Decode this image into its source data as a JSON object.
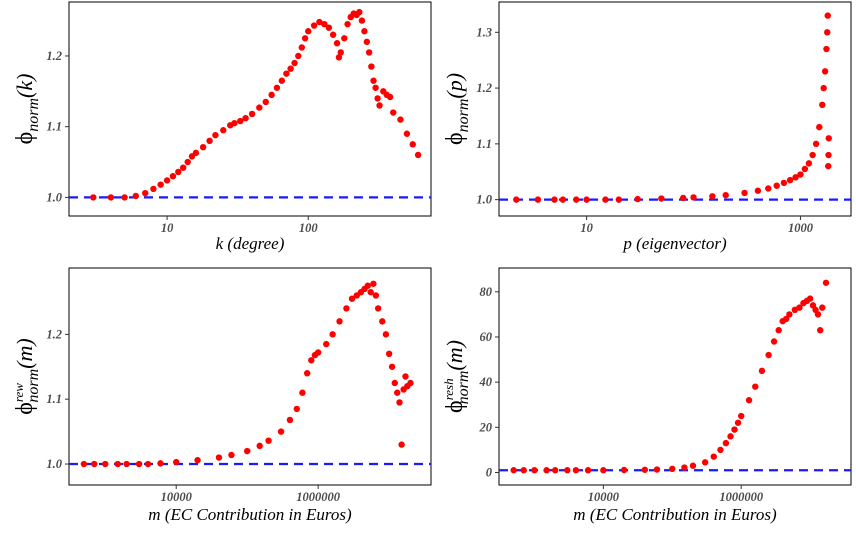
{
  "chart_data": [
    {
      "type": "scatter",
      "xlabel": "k (degree)",
      "ylabel": {
        "base": "ϕ",
        "sub": "norm",
        "sup": "",
        "arg": "(k)"
      },
      "xscale": "log10",
      "xlim": [
        2.3,
        650
      ],
      "ylim": [
        0.985,
        1.265
      ],
      "x_ticks": [
        {
          "value": 10,
          "label": "10"
        },
        {
          "value": 100,
          "label": "100"
        }
      ],
      "y_ticks": [
        {
          "value": 1.0,
          "label": "1.0"
        },
        {
          "value": 1.1,
          "label": "1.1"
        },
        {
          "value": 1.2,
          "label": "1.2"
        }
      ],
      "reference_line": 1.0,
      "points": [
        [
          3,
          1.0
        ],
        [
          4,
          1.0
        ],
        [
          5,
          1.0
        ],
        [
          6,
          1.002
        ],
        [
          7,
          1.006
        ],
        [
          8,
          1.012
        ],
        [
          9,
          1.018
        ],
        [
          10,
          1.024
        ],
        [
          11,
          1.03
        ],
        [
          12,
          1.036
        ],
        [
          13,
          1.042
        ],
        [
          14,
          1.05
        ],
        [
          15,
          1.058
        ],
        [
          16,
          1.063
        ],
        [
          18,
          1.071
        ],
        [
          20,
          1.08
        ],
        [
          22,
          1.088
        ],
        [
          25,
          1.095
        ],
        [
          28,
          1.102
        ],
        [
          30,
          1.105
        ],
        [
          33,
          1.108
        ],
        [
          36,
          1.112
        ],
        [
          40,
          1.118
        ],
        [
          45,
          1.127
        ],
        [
          50,
          1.135
        ],
        [
          55,
          1.145
        ],
        [
          60,
          1.155
        ],
        [
          65,
          1.165
        ],
        [
          70,
          1.175
        ],
        [
          75,
          1.182
        ],
        [
          80,
          1.19
        ],
        [
          85,
          1.2
        ],
        [
          90,
          1.212
        ],
        [
          95,
          1.225
        ],
        [
          100,
          1.235
        ],
        [
          110,
          1.243
        ],
        [
          120,
          1.248
        ],
        [
          130,
          1.245
        ],
        [
          140,
          1.24
        ],
        [
          150,
          1.23
        ],
        [
          160,
          1.218
        ],
        [
          165,
          1.198
        ],
        [
          170,
          1.205
        ],
        [
          180,
          1.225
        ],
        [
          190,
          1.245
        ],
        [
          200,
          1.255
        ],
        [
          210,
          1.26
        ],
        [
          220,
          1.258
        ],
        [
          230,
          1.262
        ],
        [
          240,
          1.25
        ],
        [
          250,
          1.235
        ],
        [
          260,
          1.22
        ],
        [
          270,
          1.205
        ],
        [
          280,
          1.185
        ],
        [
          290,
          1.165
        ],
        [
          300,
          1.155
        ],
        [
          310,
          1.14
        ],
        [
          320,
          1.13
        ],
        [
          340,
          1.15
        ],
        [
          360,
          1.145
        ],
        [
          380,
          1.142
        ],
        [
          400,
          1.12
        ],
        [
          450,
          1.11
        ],
        [
          500,
          1.09
        ],
        [
          550,
          1.075
        ],
        [
          600,
          1.06
        ]
      ]
    },
    {
      "type": "scatter",
      "xlabel": "p (eigenvector)",
      "ylabel": {
        "base": "ϕ",
        "sub": "norm",
        "sup": "",
        "arg": "(p)"
      },
      "xscale": "log10",
      "xlim": [
        1.8,
        2500
      ],
      "ylim": [
        0.985,
        1.34
      ],
      "x_ticks": [
        {
          "value": 10,
          "label": "10"
        },
        {
          "value": 1000,
          "label": "1000"
        }
      ],
      "y_ticks": [
        {
          "value": 1.0,
          "label": "1.0"
        },
        {
          "value": 1.1,
          "label": "1.1"
        },
        {
          "value": 1.2,
          "label": "1.2"
        },
        {
          "value": 1.3,
          "label": "1.3"
        }
      ],
      "reference_line": 1.0,
      "points": [
        [
          2.2,
          1.0
        ],
        [
          3.5,
          1.0
        ],
        [
          5,
          1.0
        ],
        [
          6,
          1.0
        ],
        [
          8,
          1.0
        ],
        [
          10,
          1.0
        ],
        [
          15,
          1.0
        ],
        [
          20,
          1.0
        ],
        [
          30,
          1.001
        ],
        [
          50,
          1.002
        ],
        [
          80,
          1.003
        ],
        [
          100,
          1.004
        ],
        [
          150,
          1.006
        ],
        [
          200,
          1.008
        ],
        [
          300,
          1.012
        ],
        [
          400,
          1.016
        ],
        [
          500,
          1.02
        ],
        [
          600,
          1.025
        ],
        [
          700,
          1.03
        ],
        [
          800,
          1.035
        ],
        [
          900,
          1.04
        ],
        [
          1000,
          1.045
        ],
        [
          1100,
          1.055
        ],
        [
          1200,
          1.065
        ],
        [
          1300,
          1.08
        ],
        [
          1400,
          1.1
        ],
        [
          1500,
          1.13
        ],
        [
          1600,
          1.17
        ],
        [
          1650,
          1.2
        ],
        [
          1700,
          1.23
        ],
        [
          1750,
          1.27
        ],
        [
          1780,
          1.3
        ],
        [
          1800,
          1.33
        ],
        [
          1820,
          1.06
        ],
        [
          1830,
          1.08
        ],
        [
          1840,
          1.11
        ]
      ]
    },
    {
      "type": "scatter",
      "xlabel": "m (EC Contribution in Euros)",
      "ylabel": {
        "base": "ϕ",
        "sub": "norm",
        "sup": "rew",
        "arg": "(m)"
      },
      "xscale": "log10",
      "xlim": [
        400,
        30000000.0
      ],
      "ylim": [
        0.98,
        1.29
      ],
      "x_ticks": [
        {
          "value": 10000,
          "label": "10000"
        },
        {
          "value": 1000000,
          "label": "1000000"
        }
      ],
      "y_ticks": [
        {
          "value": 1.0,
          "label": "1.0"
        },
        {
          "value": 1.1,
          "label": "1.1"
        },
        {
          "value": 1.2,
          "label": "1.2"
        }
      ],
      "reference_line": 1.0,
      "points": [
        [
          500,
          1.0
        ],
        [
          700,
          1.0
        ],
        [
          1000,
          1.0
        ],
        [
          1500,
          1.0
        ],
        [
          2000,
          1.0
        ],
        [
          3000,
          1.0
        ],
        [
          4000,
          1.0
        ],
        [
          6000,
          1.001
        ],
        [
          10000,
          1.003
        ],
        [
          20000,
          1.006
        ],
        [
          40000,
          1.01
        ],
        [
          60000,
          1.014
        ],
        [
          100000,
          1.02
        ],
        [
          150000,
          1.028
        ],
        [
          200000,
          1.036
        ],
        [
          300000,
          1.05
        ],
        [
          400000,
          1.068
        ],
        [
          500000,
          1.085
        ],
        [
          600000,
          1.11
        ],
        [
          700000,
          1.14
        ],
        [
          800000,
          1.16
        ],
        [
          900000,
          1.168
        ],
        [
          1000000,
          1.172
        ],
        [
          1300000,
          1.185
        ],
        [
          1600000,
          1.2
        ],
        [
          2000000,
          1.22
        ],
        [
          2500000,
          1.24
        ],
        [
          3000000,
          1.255
        ],
        [
          3500000,
          1.26
        ],
        [
          4000000,
          1.265
        ],
        [
          4500000,
          1.27
        ],
        [
          5000000,
          1.275
        ],
        [
          5500000,
          1.265
        ],
        [
          6000000,
          1.278
        ],
        [
          6500000,
          1.26
        ],
        [
          7000000,
          1.24
        ],
        [
          8000000,
          1.22
        ],
        [
          9000000,
          1.2
        ],
        [
          10000000,
          1.17
        ],
        [
          11000000,
          1.15
        ],
        [
          12000000,
          1.125
        ],
        [
          13000000,
          1.11
        ],
        [
          14000000,
          1.095
        ],
        [
          15000000,
          1.03
        ],
        [
          16000000,
          1.115
        ],
        [
          17000000,
          1.135
        ],
        [
          18000000,
          1.12
        ],
        [
          20000000,
          1.125
        ]
      ]
    },
    {
      "type": "scatter",
      "xlabel": "m (EC Contribution in Euros)",
      "ylabel": {
        "base": "ϕ",
        "sub": "norm",
        "sup": "resh",
        "arg": "(m)"
      },
      "xscale": "log10",
      "xlim": [
        400,
        30000000.0
      ],
      "ylim": [
        -2,
        87
      ],
      "x_ticks": [
        {
          "value": 10000,
          "label": "10000"
        },
        {
          "value": 1000000,
          "label": "1000000"
        }
      ],
      "y_ticks": [
        {
          "value": 0,
          "label": "0"
        },
        {
          "value": 20,
          "label": "20"
        },
        {
          "value": 40,
          "label": "40"
        },
        {
          "value": 60,
          "label": "60"
        },
        {
          "value": 80,
          "label": "80"
        }
      ],
      "reference_line": 1,
      "points": [
        [
          500,
          1
        ],
        [
          700,
          1
        ],
        [
          1000,
          1
        ],
        [
          1500,
          1
        ],
        [
          2000,
          1
        ],
        [
          3000,
          1
        ],
        [
          4000,
          1
        ],
        [
          6000,
          1
        ],
        [
          10000,
          1
        ],
        [
          20000,
          1.1
        ],
        [
          40000,
          1.2
        ],
        [
          60000,
          1.3
        ],
        [
          100000,
          1.6
        ],
        [
          150000,
          2.2
        ],
        [
          200000,
          3
        ],
        [
          300000,
          4.5
        ],
        [
          400000,
          7
        ],
        [
          500000,
          10
        ],
        [
          600000,
          13
        ],
        [
          700000,
          16
        ],
        [
          800000,
          19
        ],
        [
          900000,
          22
        ],
        [
          1000000,
          25
        ],
        [
          1300000,
          32
        ],
        [
          1600000,
          38
        ],
        [
          2000000,
          45
        ],
        [
          2500000,
          52
        ],
        [
          3000000,
          58
        ],
        [
          3500000,
          63
        ],
        [
          4000000,
          67
        ],
        [
          4500000,
          68
        ],
        [
          5000000,
          70
        ],
        [
          6000000,
          72
        ],
        [
          7000000,
          73
        ],
        [
          8000000,
          75
        ],
        [
          9000000,
          76
        ],
        [
          10000000,
          77
        ],
        [
          11000000,
          74
        ],
        [
          12000000,
          72
        ],
        [
          13000000,
          70
        ],
        [
          14000000,
          63
        ],
        [
          15000000,
          73
        ],
        [
          17000000,
          84
        ]
      ]
    }
  ]
}
